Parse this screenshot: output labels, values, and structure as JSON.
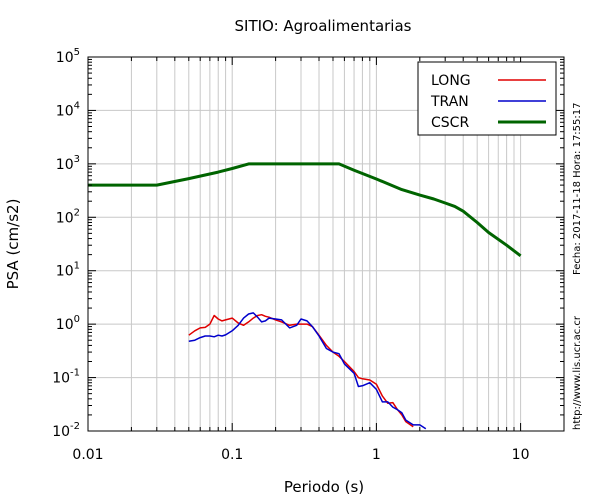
{
  "chart_data": {
    "type": "line",
    "title": "SITIO: Agroalimentarias",
    "xlabel": "Periodo (s)",
    "ylabel": "PSA (cm/s2)",
    "x_scale": "log",
    "y_scale": "log",
    "xlim": [
      0.01,
      20
    ],
    "ylim": [
      0.01,
      100000
    ],
    "grid": "x-minor",
    "x_ticks": [
      {
        "value": 0.01,
        "label": "0.01"
      },
      {
        "value": 0.1,
        "label": "0.1"
      },
      {
        "value": 1,
        "label": "1"
      },
      {
        "value": 10,
        "label": "10"
      }
    ],
    "y_ticks": [
      {
        "value": 0.01,
        "base": "10",
        "exp": "-2"
      },
      {
        "value": 0.1,
        "base": "10",
        "exp": "-1"
      },
      {
        "value": 1,
        "base": "10",
        "exp": "0"
      },
      {
        "value": 10,
        "base": "10",
        "exp": "1"
      },
      {
        "value": 100,
        "base": "10",
        "exp": "2"
      },
      {
        "value": 1000,
        "base": "10",
        "exp": "3"
      },
      {
        "value": 10000,
        "base": "10",
        "exp": "4"
      },
      {
        "value": 100000,
        "base": "10",
        "exp": "5"
      }
    ],
    "legend_position": "top-right",
    "series": [
      {
        "name": "LONG",
        "color": "#e00000",
        "x": [
          0.05,
          0.055,
          0.06,
          0.065,
          0.07,
          0.075,
          0.08,
          0.085,
          0.09,
          0.1,
          0.11,
          0.12,
          0.13,
          0.14,
          0.15,
          0.16,
          0.17,
          0.18,
          0.2,
          0.22,
          0.25,
          0.28,
          0.3,
          0.33,
          0.36,
          0.4,
          0.45,
          0.5,
          0.55,
          0.6,
          0.7,
          0.75,
          0.8,
          0.9,
          1.0,
          1.1,
          1.2,
          1.3,
          1.4,
          1.5,
          1.6,
          1.8
        ],
        "y": [
          0.62,
          0.75,
          0.85,
          0.87,
          1.0,
          1.45,
          1.25,
          1.15,
          1.2,
          1.3,
          1.05,
          0.95,
          1.1,
          1.3,
          1.45,
          1.5,
          1.4,
          1.35,
          1.2,
          1.1,
          0.95,
          1.0,
          1.0,
          1.0,
          0.9,
          0.62,
          0.4,
          0.3,
          0.25,
          0.2,
          0.13,
          0.1,
          0.095,
          0.09,
          0.075,
          0.045,
          0.033,
          0.034,
          0.025,
          0.02,
          0.015,
          0.012
        ]
      },
      {
        "name": "TRAN",
        "color": "#0000cc",
        "x": [
          0.05,
          0.055,
          0.06,
          0.065,
          0.07,
          0.075,
          0.08,
          0.085,
          0.09,
          0.1,
          0.11,
          0.12,
          0.13,
          0.14,
          0.15,
          0.16,
          0.17,
          0.18,
          0.2,
          0.22,
          0.25,
          0.28,
          0.3,
          0.33,
          0.36,
          0.4,
          0.45,
          0.5,
          0.55,
          0.6,
          0.7,
          0.75,
          0.8,
          0.9,
          1.0,
          1.1,
          1.2,
          1.3,
          1.4,
          1.5,
          1.6,
          1.8,
          2.0,
          2.2
        ],
        "y": [
          0.48,
          0.5,
          0.56,
          0.6,
          0.6,
          0.58,
          0.62,
          0.6,
          0.63,
          0.75,
          0.95,
          1.3,
          1.55,
          1.62,
          1.35,
          1.1,
          1.15,
          1.3,
          1.25,
          1.2,
          0.85,
          0.95,
          1.25,
          1.15,
          0.9,
          0.6,
          0.35,
          0.3,
          0.28,
          0.18,
          0.12,
          0.068,
          0.07,
          0.08,
          0.06,
          0.035,
          0.035,
          0.028,
          0.025,
          0.022,
          0.016,
          0.013,
          0.013,
          0.011
        ]
      },
      {
        "name": "CSCR",
        "color": "#006400",
        "x": [
          0.01,
          0.03,
          0.05,
          0.08,
          0.1,
          0.13,
          0.2,
          0.3,
          0.4,
          0.55,
          0.7,
          1.0,
          1.5,
          2.0,
          2.5,
          3.0,
          3.5,
          4.0,
          5.0,
          6.0,
          8.0,
          10.0
        ],
        "y": [
          400,
          400,
          530,
          700,
          820,
          1000,
          1000,
          1000,
          1000,
          1000,
          760,
          520,
          330,
          260,
          220,
          185,
          160,
          130,
          80,
          52,
          30,
          19
        ]
      }
    ]
  },
  "side_notes": {
    "timestamp": "Fecha: 2017-11-18 Hora: 17:55:17",
    "url": "http://www.lis.ucr.ac.cr"
  }
}
